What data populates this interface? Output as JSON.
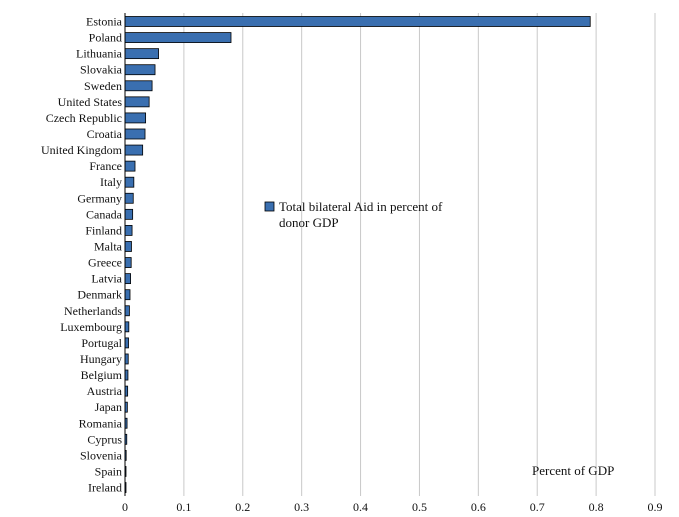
{
  "chart_data": {
    "type": "bar",
    "orientation": "horizontal",
    "categories": [
      "Estonia",
      "Poland",
      "Lithuania",
      "Slovakia",
      "Sweden",
      "United States",
      "Czech Republic",
      "Croatia",
      "United Kingdom",
      "France",
      "Italy",
      "Germany",
      "Canada",
      "Finland",
      "Malta",
      "Greece",
      "Latvia",
      "Denmark",
      "Netherlands",
      "Luxembourg",
      "Portugal",
      "Hungary",
      "Belgium",
      "Austria",
      "Japan",
      "Romania",
      "Cyprus",
      "Slovenia",
      "Spain",
      "Ireland"
    ],
    "series": [
      {
        "name": "Total bilateral Aid in percent of donor GDP",
        "color": "#3a6fb0",
        "values": [
          0.79,
          0.18,
          0.057,
          0.051,
          0.046,
          0.041,
          0.035,
          0.034,
          0.03,
          0.017,
          0.015,
          0.014,
          0.013,
          0.012,
          0.011,
          0.0105,
          0.0095,
          0.0085,
          0.0075,
          0.0065,
          0.006,
          0.0055,
          0.005,
          0.0045,
          0.004,
          0.0035,
          0.003,
          0.002,
          0.0015,
          0.001
        ]
      }
    ],
    "xlim": [
      0,
      0.9
    ],
    "xticks": [
      "0",
      "0.1",
      "0.2",
      "0.3",
      "0.4",
      "0.5",
      "0.6",
      "0.7",
      "0.8",
      "0.9"
    ],
    "xlabel": "Percent of GDP",
    "grid": true,
    "legend_position": "center",
    "legend_lines": [
      "Total bilateral Aid in percent of",
      "donor GDP"
    ]
  }
}
